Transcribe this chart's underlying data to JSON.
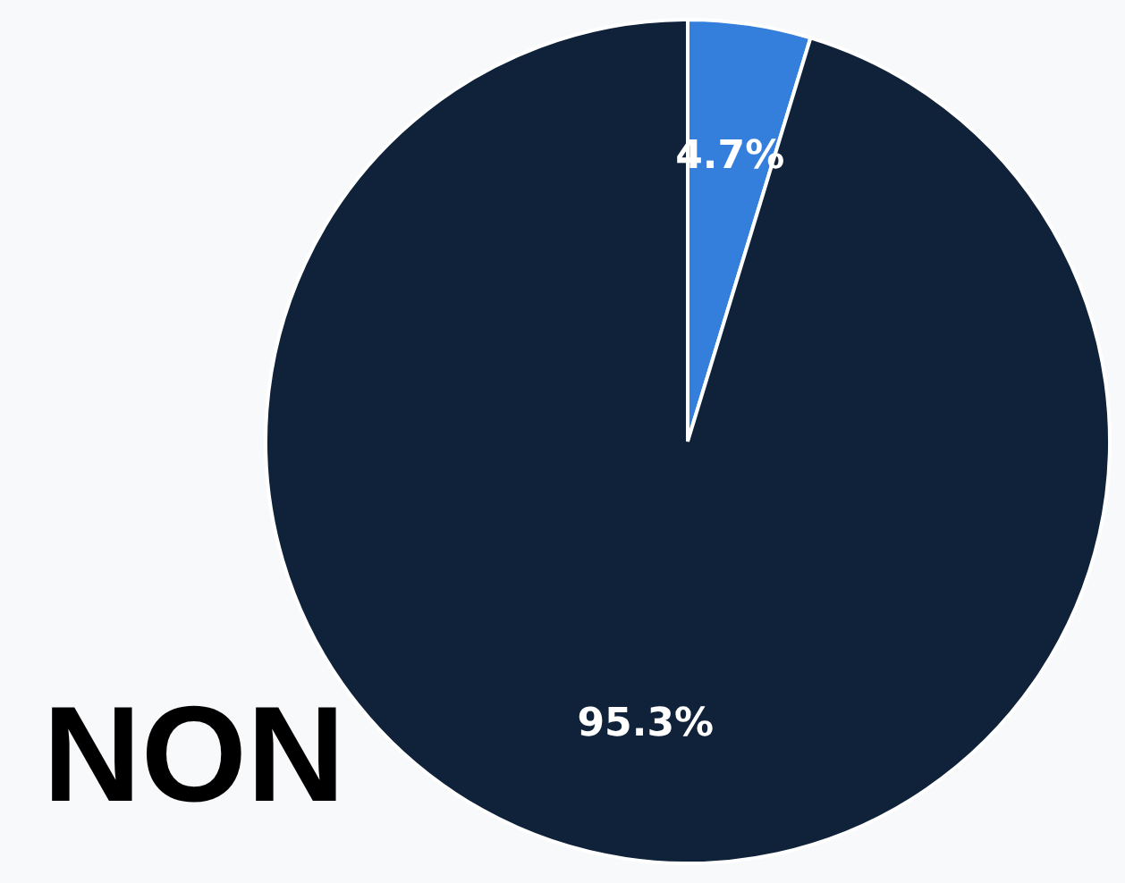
{
  "chart_data": {
    "type": "pie",
    "categories": [
      null,
      null
    ],
    "values": [
      4.7,
      95.3
    ],
    "colors": [
      "#347fdc",
      "#0f2239"
    ],
    "value_labels": [
      "4.7%",
      "95.3%"
    ],
    "annotations": [
      "NON"
    ]
  }
}
